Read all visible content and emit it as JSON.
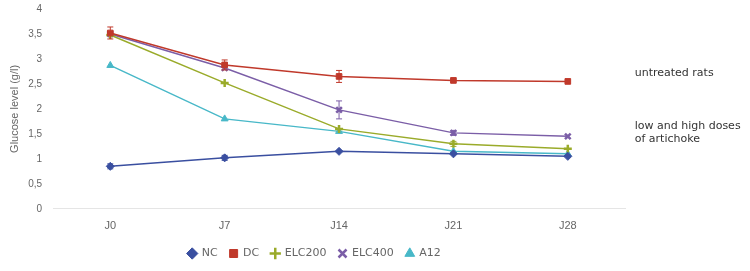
{
  "chart_data": {
    "type": "line",
    "categories": [
      "J0",
      "J7",
      "J14",
      "J21",
      "J28"
    ],
    "series": [
      {
        "name": "NC",
        "color": "#3a4fa0",
        "marker": "diamond",
        "values": [
          0.85,
          1.02,
          1.15,
          1.1,
          1.05
        ],
        "errors": [
          0.05,
          0.05,
          0.0,
          0.0,
          0.0
        ]
      },
      {
        "name": "DC",
        "color": "#c0392b",
        "marker": "square",
        "values": [
          3.52,
          2.88,
          2.65,
          2.57,
          2.55
        ],
        "errors": [
          0.12,
          0.1,
          0.12,
          0.0,
          0.0
        ]
      },
      {
        "name": "ELC200",
        "color": "#9aab2a",
        "marker": "plus",
        "values": [
          3.48,
          2.52,
          1.6,
          1.3,
          1.2
        ],
        "errors": [
          0.0,
          0.0,
          0.0,
          0.05,
          0.0
        ]
      },
      {
        "name": "ELC400",
        "color": "#7b5ea7",
        "marker": "x",
        "values": [
          3.5,
          2.82,
          1.98,
          1.52,
          1.45
        ],
        "errors": [
          0.0,
          0.0,
          0.18,
          0.05,
          0.0
        ]
      },
      {
        "name": "A12",
        "color": "#48b8c8",
        "marker": "triangle",
        "values": [
          2.87,
          1.8,
          1.55,
          1.15,
          1.1
        ],
        "errors": [
          0.0,
          0.0,
          0.0,
          0.0,
          0.0
        ]
      }
    ],
    "ylabel": "Glucose level (g/l)",
    "ylim": [
      0,
      4
    ],
    "yticks": [
      0,
      {
        "value": 0.5,
        "label": "0,5"
      },
      1,
      {
        "value": 1.5,
        "label": "1,5"
      },
      2,
      {
        "value": 2.5,
        "label": "2,5"
      },
      3,
      {
        "value": 3.5,
        "label": "3,5"
      },
      4
    ],
    "annotations": [
      "untreated rats",
      "low and high doses\nof artichoke"
    ],
    "grid": false,
    "legend": "bottom"
  }
}
